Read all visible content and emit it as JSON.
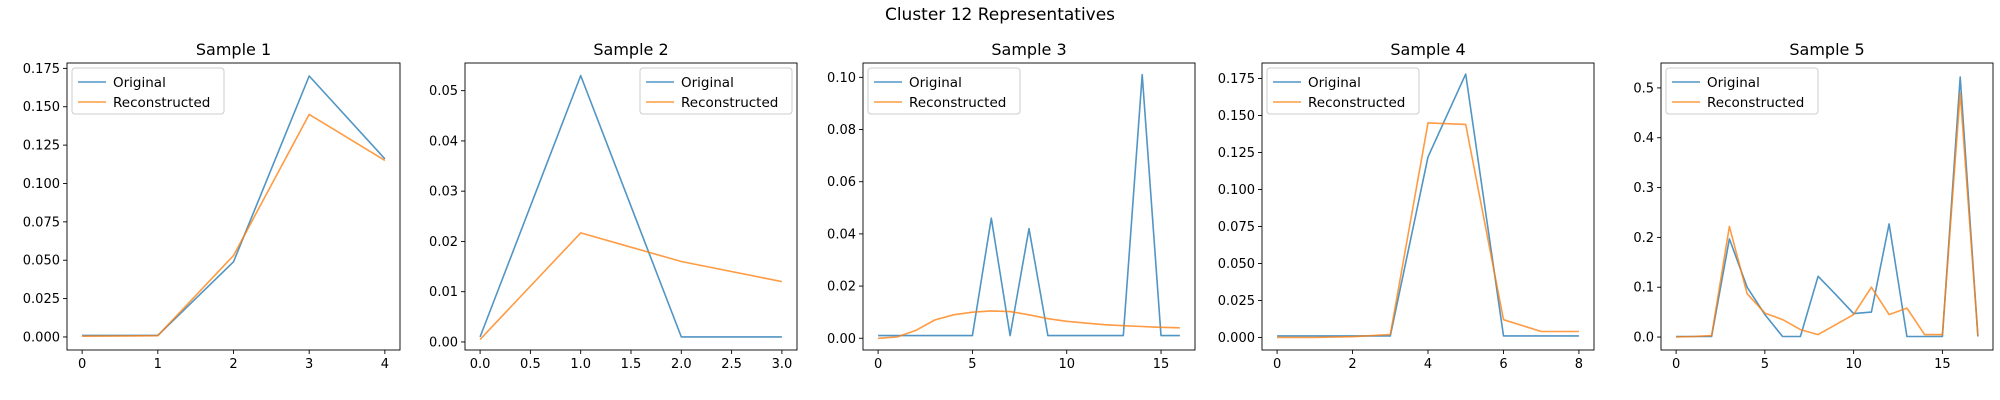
{
  "figure_title": "Cluster 12 Representatives",
  "colors": {
    "original": "#1f77b4",
    "reconstructed": "#ff7f0e"
  },
  "chart_data": [
    {
      "type": "line",
      "title": "Sample 1",
      "legend": {
        "position": "top-left",
        "entries": [
          "Original",
          "Reconstructed"
        ]
      },
      "xlim": [
        -0.2,
        4.2
      ],
      "ylim": [
        -0.0085,
        0.1785
      ],
      "xticks": [
        0,
        1,
        2,
        3,
        4
      ],
      "xtick_labels": [
        "0",
        "1",
        "2",
        "3",
        "4"
      ],
      "yticks": [
        0,
        0.025,
        0.05,
        0.075,
        0.1,
        0.125,
        0.15,
        0.175
      ],
      "ytick_labels": [
        "0.000",
        "0.025",
        "0.050",
        "0.075",
        "0.100",
        "0.125",
        "0.150",
        "0.175"
      ],
      "x": [
        0,
        1,
        2,
        3,
        4
      ],
      "series": [
        {
          "name": "Original",
          "values": [
            0.001,
            0.001,
            0.049,
            0.17,
            0.116
          ]
        },
        {
          "name": "Reconstructed",
          "values": [
            0.0005,
            0.0008,
            0.053,
            0.145,
            0.115
          ]
        }
      ]
    },
    {
      "type": "line",
      "title": "Sample 2",
      "legend": {
        "position": "top-right",
        "entries": [
          "Original",
          "Reconstructed"
        ]
      },
      "xlim": [
        -0.15,
        3.15
      ],
      "ylim": [
        -0.0016,
        0.0555
      ],
      "xticks": [
        0,
        0.5,
        1,
        1.5,
        2,
        2.5,
        3
      ],
      "xtick_labels": [
        "0.0",
        "0.5",
        "1.0",
        "1.5",
        "2.0",
        "2.5",
        "3.0"
      ],
      "yticks": [
        0,
        0.01,
        0.02,
        0.03,
        0.04,
        0.05
      ],
      "ytick_labels": [
        "0.00",
        "0.01",
        "0.02",
        "0.03",
        "0.04",
        "0.05"
      ],
      "x": [
        0,
        1,
        2,
        3
      ],
      "series": [
        {
          "name": "Original",
          "values": [
            0.001,
            0.053,
            0.001,
            0.001
          ]
        },
        {
          "name": "Reconstructed",
          "values": [
            0.0005,
            0.0217,
            0.016,
            0.012
          ]
        }
      ]
    },
    {
      "type": "line",
      "title": "Sample 3",
      "legend": {
        "position": "top-left",
        "entries": [
          "Original",
          "Reconstructed"
        ]
      },
      "xlim": [
        -0.8,
        16.8
      ],
      "ylim": [
        -0.0045,
        0.1055
      ],
      "xticks": [
        0,
        5,
        10,
        15
      ],
      "xtick_labels": [
        "0",
        "5",
        "10",
        "15"
      ],
      "yticks": [
        0,
        0.02,
        0.04,
        0.06,
        0.08,
        0.1
      ],
      "ytick_labels": [
        "0.00",
        "0.02",
        "0.04",
        "0.06",
        "0.08",
        "0.10"
      ],
      "x": [
        0,
        1,
        2,
        3,
        4,
        5,
        6,
        7,
        8,
        9,
        10,
        11,
        12,
        13,
        14,
        15,
        16
      ],
      "series": [
        {
          "name": "Original",
          "values": [
            0.001,
            0.001,
            0.001,
            0.001,
            0.001,
            0.001,
            0.046,
            0.001,
            0.042,
            0.001,
            0.001,
            0.001,
            0.001,
            0.001,
            0.101,
            0.001,
            0.001
          ]
        },
        {
          "name": "Reconstructed",
          "values": [
            0.0,
            0.0005,
            0.003,
            0.007,
            0.009,
            0.01,
            0.0105,
            0.0102,
            0.009,
            0.0075,
            0.0065,
            0.0058,
            0.0052,
            0.0048,
            0.0045,
            0.0042,
            0.004
          ]
        }
      ]
    },
    {
      "type": "line",
      "title": "Sample 4",
      "legend": {
        "position": "top-left",
        "entries": [
          "Original",
          "Reconstructed"
        ]
      },
      "xlim": [
        -0.4,
        8.4
      ],
      "ylim": [
        -0.0085,
        0.1855
      ],
      "xticks": [
        0,
        2,
        4,
        6,
        8
      ],
      "xtick_labels": [
        "0",
        "2",
        "4",
        "6",
        "8"
      ],
      "yticks": [
        0,
        0.025,
        0.05,
        0.075,
        0.1,
        0.125,
        0.15,
        0.175
      ],
      "ytick_labels": [
        "0.000",
        "0.025",
        "0.050",
        "0.075",
        "0.100",
        "0.125",
        "0.150",
        "0.175"
      ],
      "x": [
        0,
        1,
        2,
        3,
        4,
        5,
        6,
        7,
        8
      ],
      "series": [
        {
          "name": "Original",
          "values": [
            0.001,
            0.001,
            0.001,
            0.001,
            0.122,
            0.178,
            0.001,
            0.001,
            0.001
          ]
        },
        {
          "name": "Reconstructed",
          "values": [
            0.0,
            0.0,
            0.0005,
            0.002,
            0.145,
            0.144,
            0.012,
            0.004,
            0.004
          ]
        }
      ]
    },
    {
      "type": "line",
      "title": "Sample 5",
      "legend": {
        "position": "top-left",
        "entries": [
          "Original",
          "Reconstructed"
        ]
      },
      "xlim": [
        -0.85,
        17.85
      ],
      "ylim": [
        -0.026,
        0.55
      ],
      "xticks": [
        0,
        5,
        10,
        15
      ],
      "xtick_labels": [
        "0",
        "5",
        "10",
        "15"
      ],
      "yticks": [
        0,
        0.1,
        0.2,
        0.3,
        0.4,
        0.5
      ],
      "ytick_labels": [
        "0.0",
        "0.1",
        "0.2",
        "0.3",
        "0.4",
        "0.5"
      ],
      "x": [
        0,
        1,
        2,
        3,
        4,
        5,
        6,
        7,
        8,
        9,
        10,
        11,
        12,
        13,
        14,
        15,
        16,
        17
      ],
      "series": [
        {
          "name": "Original",
          "values": [
            0.001,
            0.001,
            0.001,
            0.197,
            0.1,
            0.045,
            0.001,
            0.001,
            0.122,
            0.085,
            0.047,
            0.05,
            0.227,
            0.001,
            0.001,
            0.001,
            0.522,
            0.001
          ]
        },
        {
          "name": "Reconstructed",
          "values": [
            0.0,
            0.001,
            0.003,
            0.222,
            0.087,
            0.048,
            0.035,
            0.015,
            0.005,
            0.025,
            0.045,
            0.1,
            0.045,
            0.058,
            0.005,
            0.005,
            0.49,
            0.003
          ]
        }
      ]
    }
  ]
}
